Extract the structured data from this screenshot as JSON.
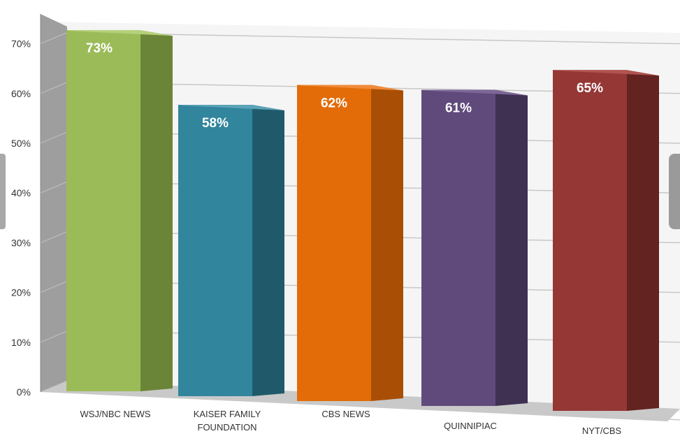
{
  "chart_data": {
    "type": "bar",
    "categories": [
      "WSJ/NBC NEWS",
      "KAISER FAMILY FOUNDATION",
      "CBS NEWS",
      "QUINNIPIAC",
      "NYT/CBS"
    ],
    "category_lines": [
      [
        "WSJ/NBC NEWS"
      ],
      [
        "KAISER FAMILY",
        "FOUNDATION"
      ],
      [
        "CBS NEWS"
      ],
      [
        "QUINNIPIAC"
      ],
      [
        "NYT/CBS"
      ]
    ],
    "values": [
      73,
      58,
      62,
      61,
      65
    ],
    "value_labels": [
      "73%",
      "58%",
      "62%",
      "61%",
      "65%"
    ],
    "colors": [
      "#9bbb59",
      "#31859c",
      "#e36c09",
      "#604a7b",
      "#953735"
    ],
    "side_colors": [
      "#6b8538",
      "#205a6a",
      "#a84f05",
      "#3f3152",
      "#632320"
    ],
    "top_colors": [
      "#b5d07a",
      "#5aa3b7",
      "#f08a3a",
      "#7d6698",
      "#b05452"
    ],
    "yticks": [
      "0%",
      "10%",
      "20%",
      "30%",
      "40%",
      "50%",
      "60%",
      "70%"
    ],
    "ylim": [
      0,
      75
    ],
    "grid": true,
    "legend": "none"
  }
}
